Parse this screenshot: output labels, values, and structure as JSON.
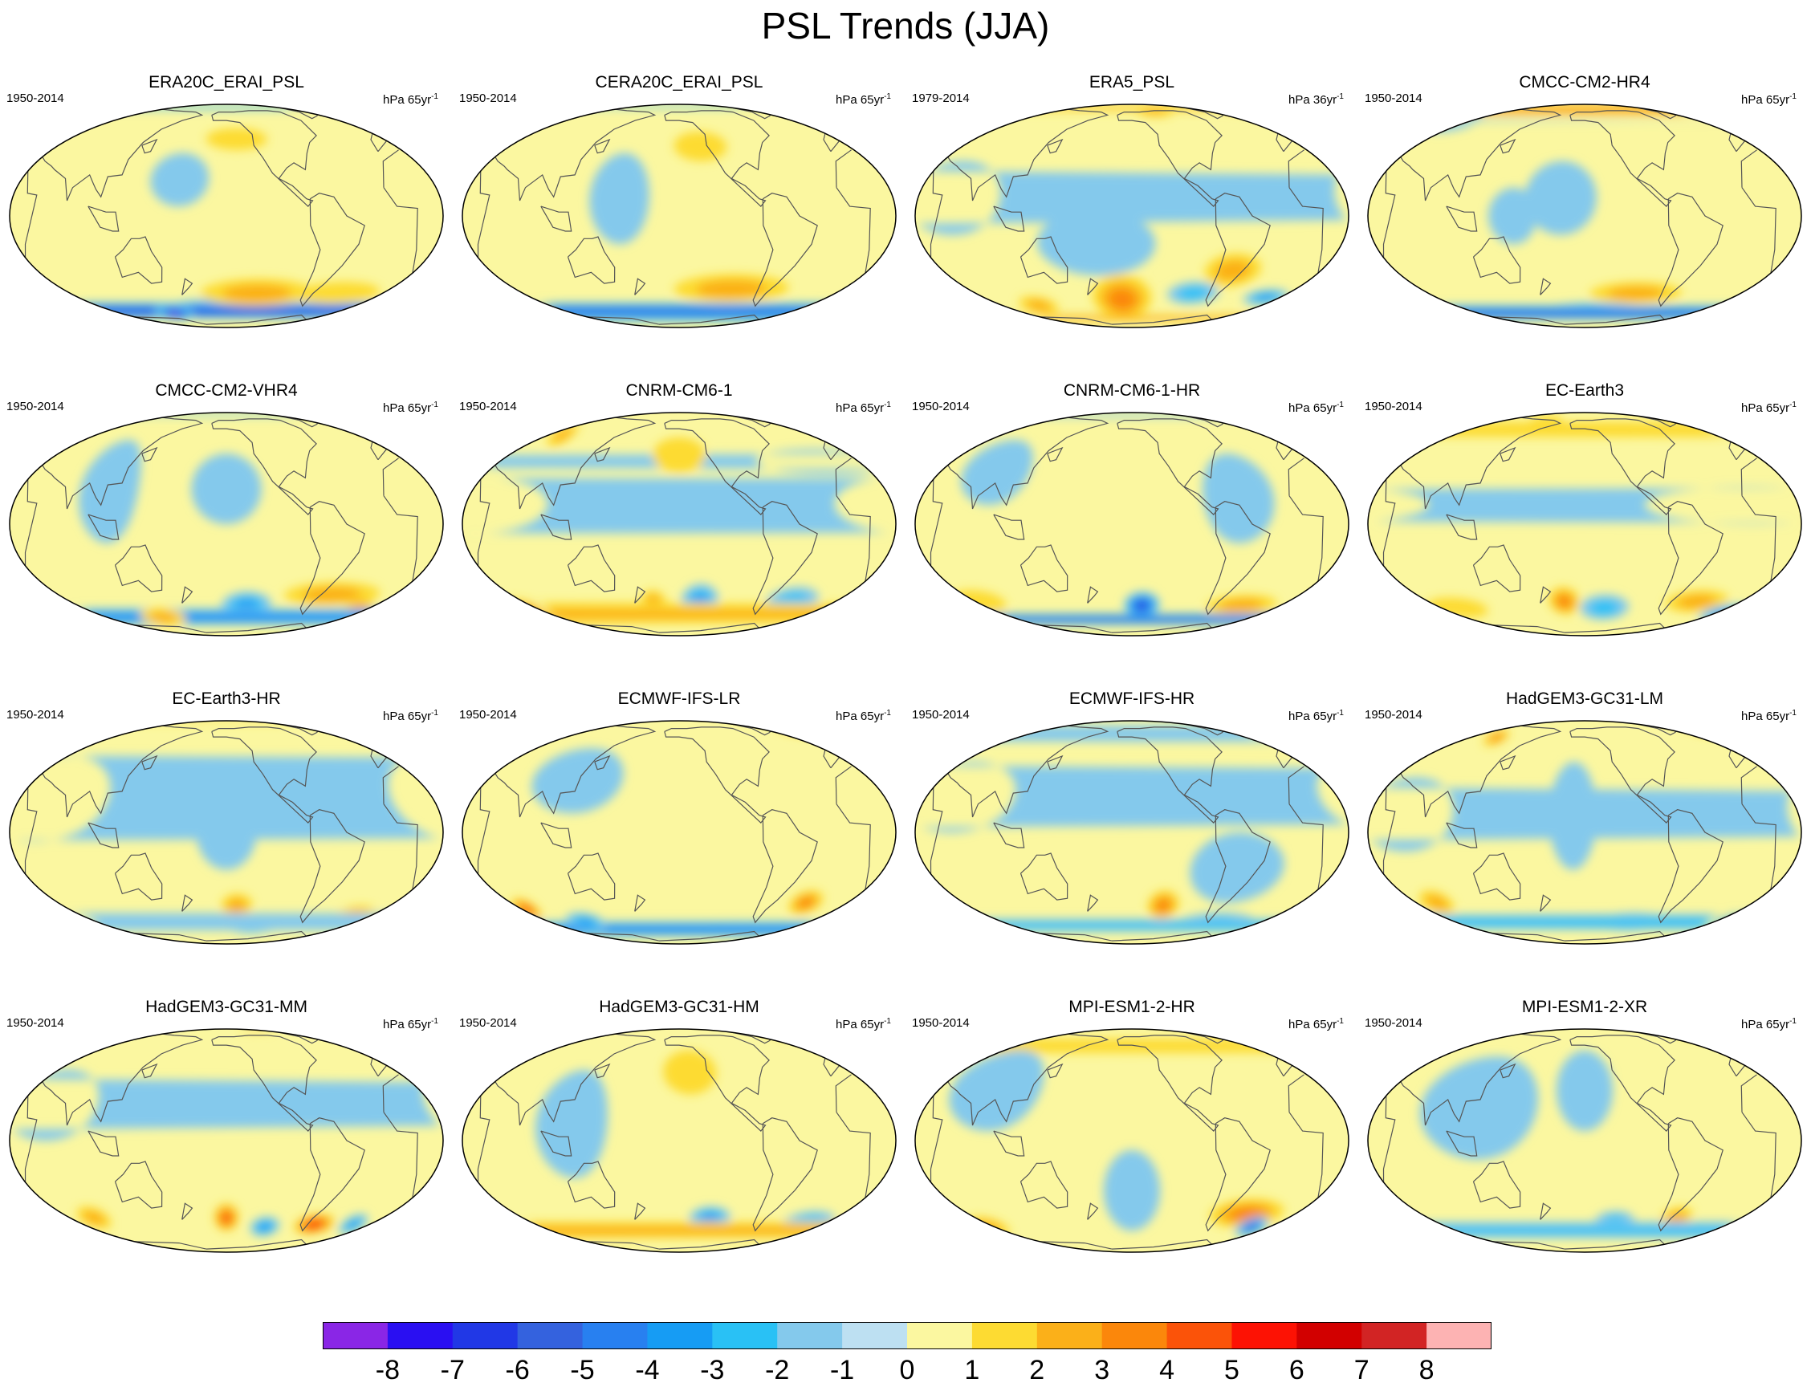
{
  "figure": {
    "title": "PSL Trends (JJA)"
  },
  "panels": [
    {
      "name": "ERA20C_ERAI_PSL",
      "period": "1950-2014",
      "units_base": "hPa 65yr",
      "units_exp": "-1",
      "blobs": [
        {
          "lon": -150,
          "lat": -58,
          "rx": 70,
          "ry": 9,
          "v": -5
        },
        {
          "lon": 30,
          "lat": -60,
          "rx": 60,
          "ry": 8,
          "v": -6
        },
        {
          "lon": 150,
          "lat": -62,
          "rx": 22,
          "ry": 8,
          "v": -8
        },
        {
          "lon": -120,
          "lat": -45,
          "rx": 55,
          "ry": 10,
          "v": 2
        },
        {
          "lon": -40,
          "lat": -45,
          "rx": 40,
          "ry": 8,
          "v": 1
        },
        {
          "lon": 0,
          "lat": 80,
          "rx": 90,
          "ry": 6,
          "v": -2
        },
        {
          "lon": -140,
          "lat": 45,
          "rx": 30,
          "ry": 8,
          "v": 1
        },
        {
          "lon": 170,
          "lat": 20,
          "rx": 25,
          "ry": 15,
          "v": -1
        }
      ]
    },
    {
      "name": "CERA20C_ERAI_PSL",
      "period": "1950-2014",
      "units_base": "hPa 65yr",
      "units_exp": "-1",
      "blobs": [
        {
          "lon": -150,
          "lat": -62,
          "rx": 60,
          "ry": 8,
          "v": -5
        },
        {
          "lon": 40,
          "lat": -60,
          "rx": 70,
          "ry": 8,
          "v": -5
        },
        {
          "lon": 20,
          "lat": -68,
          "rx": 15,
          "ry": 5,
          "v": -7
        },
        {
          "lon": -100,
          "lat": -42,
          "rx": 55,
          "ry": 10,
          "v": 2
        },
        {
          "lon": 0,
          "lat": 82,
          "rx": 90,
          "ry": 5,
          "v": -2
        },
        {
          "lon": 160,
          "lat": 10,
          "rx": 25,
          "ry": 25,
          "v": -1
        },
        {
          "lon": -130,
          "lat": 40,
          "rx": 25,
          "ry": 10,
          "v": 1
        }
      ]
    },
    {
      "name": "ERA5_PSL",
      "period": "1979-2014",
      "units_base": "hPa 36yr",
      "units_exp": "-1",
      "blobs": [
        {
          "lon": 0,
          "lat": 78,
          "rx": 45,
          "ry": 8,
          "v": 3
        },
        {
          "lon": -120,
          "lat": 72,
          "rx": 25,
          "ry": 8,
          "v": 2
        },
        {
          "lon": -90,
          "lat": -45,
          "rx": 25,
          "ry": 8,
          "v": -2
        },
        {
          "lon": -15,
          "lat": -48,
          "rx": 22,
          "ry": 6,
          "v": -3
        },
        {
          "lon": -160,
          "lat": -50,
          "rx": 30,
          "ry": 18,
          "v": 3
        },
        {
          "lon": -60,
          "lat": -30,
          "rx": 25,
          "ry": 10,
          "v": 2
        },
        {
          "lon": -180,
          "lat": -15,
          "rx": 50,
          "ry": 18,
          "v": -1
        },
        {
          "lon": 60,
          "lat": 10,
          "rx": 40,
          "ry": 20,
          "v": -1
        },
        {
          "lon": 110,
          "lat": -55,
          "rx": 20,
          "ry": 8,
          "v": 2
        },
        {
          "lon": 60,
          "lat": -68,
          "rx": 80,
          "ry": 4,
          "v": 3
        }
      ]
    },
    {
      "name": "CMCC-CM2-HR4",
      "period": "1950-2014",
      "units_base": "hPa 65yr",
      "units_exp": "-1",
      "blobs": [
        {
          "lon": 10,
          "lat": 75,
          "rx": 60,
          "ry": 10,
          "v": 3
        },
        {
          "lon": -100,
          "lat": -45,
          "rx": 45,
          "ry": 8,
          "v": 2
        },
        {
          "lon": -140,
          "lat": -60,
          "rx": 60,
          "ry": 8,
          "v": -4
        },
        {
          "lon": 40,
          "lat": -62,
          "rx": 35,
          "ry": 8,
          "v": -6
        },
        {
          "lon": 60,
          "lat": 60,
          "rx": 30,
          "ry": 10,
          "v": -1
        },
        {
          "lon": 150,
          "lat": 0,
          "rx": 20,
          "ry": 15,
          "v": -1
        },
        {
          "lon": -170,
          "lat": 10,
          "rx": 30,
          "ry": 20,
          "v": -1
        }
      ]
    },
    {
      "name": "CMCC-CM2-VHR4",
      "period": "1950-2014",
      "units_base": "hPa 65yr",
      "units_exp": "-1",
      "blobs": [
        {
          "lon": 0,
          "lat": 82,
          "rx": 60,
          "ry": 5,
          "v": -2
        },
        {
          "lon": 15,
          "lat": 62,
          "rx": 12,
          "ry": 6,
          "v": 2
        },
        {
          "lon": -130,
          "lat": -48,
          "rx": 25,
          "ry": 10,
          "v": -3
        },
        {
          "lon": -50,
          "lat": -40,
          "rx": 45,
          "ry": 8,
          "v": 2
        },
        {
          "lon": -15,
          "lat": -50,
          "rx": 15,
          "ry": 6,
          "v": 3
        },
        {
          "lon": 40,
          "lat": -58,
          "rx": 40,
          "ry": 8,
          "v": -4
        },
        {
          "lon": 140,
          "lat": -58,
          "rx": 25,
          "ry": 8,
          "v": 2
        },
        {
          "lon": 110,
          "lat": 20,
          "rx": 25,
          "ry": 30,
          "v": -1
        },
        {
          "lon": -150,
          "lat": 20,
          "rx": 30,
          "ry": 20,
          "v": -1
        }
      ]
    },
    {
      "name": "CNRM-CM6-1",
      "period": "1950-2014",
      "units_base": "hPa 65yr",
      "units_exp": "-1",
      "blobs": [
        {
          "lon": -130,
          "lat": -45,
          "rx": 18,
          "ry": 12,
          "v": -3
        },
        {
          "lon": -175,
          "lat": -45,
          "rx": 12,
          "ry": 8,
          "v": 2
        },
        {
          "lon": -40,
          "lat": -45,
          "rx": 25,
          "ry": 10,
          "v": -2
        },
        {
          "lon": 50,
          "lat": -55,
          "rx": 30,
          "ry": 12,
          "v": 3
        },
        {
          "lon": 85,
          "lat": 55,
          "rx": 12,
          "ry": 10,
          "v": 2
        },
        {
          "lon": -20,
          "lat": 35,
          "rx": 60,
          "ry": 8,
          "v": -1
        },
        {
          "lon": 40,
          "lat": 10,
          "rx": 60,
          "ry": 15,
          "v": -1
        },
        {
          "lon": -150,
          "lat": 40,
          "rx": 25,
          "ry": 12,
          "v": 1
        }
      ]
    },
    {
      "name": "CNRM-CM6-1-HR",
      "period": "1950-2014",
      "units_base": "hPa 65yr",
      "units_exp": "-1",
      "blobs": [
        {
          "lon": -140,
          "lat": -48,
          "rx": 18,
          "ry": 10,
          "v": -6
        },
        {
          "lon": -40,
          "lat": -48,
          "rx": 35,
          "ry": 8,
          "v": 2
        },
        {
          "lon": 20,
          "lat": -60,
          "rx": 25,
          "ry": 6,
          "v": -7
        },
        {
          "lon": 60,
          "lat": -45,
          "rx": 25,
          "ry": 8,
          "v": 1
        },
        {
          "lon": 40,
          "lat": 80,
          "rx": 40,
          "ry": 5,
          "v": -1
        },
        {
          "lon": -60,
          "lat": 15,
          "rx": 30,
          "ry": 25,
          "v": -1
        },
        {
          "lon": 90,
          "lat": 30,
          "rx": 30,
          "ry": 20,
          "v": -1
        }
      ]
    },
    {
      "name": "EC-Earth3",
      "period": "1950-2014",
      "units_base": "hPa 65yr",
      "units_exp": "-1",
      "blobs": [
        {
          "lon": -170,
          "lat": -45,
          "rx": 15,
          "ry": 10,
          "v": 3
        },
        {
          "lon": -130,
          "lat": -50,
          "rx": 25,
          "ry": 10,
          "v": -2
        },
        {
          "lon": -40,
          "lat": -45,
          "rx": 30,
          "ry": 8,
          "v": 2
        },
        {
          "lon": 0,
          "lat": -55,
          "rx": 25,
          "ry": 8,
          "v": -3
        },
        {
          "lon": 80,
          "lat": -50,
          "rx": 30,
          "ry": 8,
          "v": 1
        },
        {
          "lon": 20,
          "lat": 60,
          "rx": 30,
          "ry": 8,
          "v": 1
        },
        {
          "lon": 160,
          "lat": 70,
          "rx": 20,
          "ry": 8,
          "v": 1
        },
        {
          "lon": -10,
          "lat": 10,
          "rx": 90,
          "ry": 10,
          "v": -1
        }
      ]
    },
    {
      "name": "EC-Earth3-HR",
      "period": "1950-2014",
      "units_base": "hPa 65yr",
      "units_exp": "-1",
      "blobs": [
        {
          "lon": -140,
          "lat": -42,
          "rx": 15,
          "ry": 8,
          "v": 2
        },
        {
          "lon": -120,
          "lat": -58,
          "rx": 30,
          "ry": 8,
          "v": -3
        },
        {
          "lon": -20,
          "lat": -50,
          "rx": 20,
          "ry": 8,
          "v": 2
        },
        {
          "lon": 40,
          "lat": -55,
          "rx": 30,
          "ry": 8,
          "v": -1
        },
        {
          "lon": 0,
          "lat": 85,
          "rx": 60,
          "ry": 5,
          "v": 1
        },
        {
          "lon": 50,
          "lat": 20,
          "rx": 60,
          "ry": 25,
          "v": -1
        },
        {
          "lon": -150,
          "lat": 0,
          "rx": 25,
          "ry": 20,
          "v": -1
        }
      ]
    },
    {
      "name": "ECMWF-IFS-LR",
      "period": "1950-2014",
      "units_base": "hPa 65yr",
      "units_exp": "-1",
      "blobs": [
        {
          "lon": 0,
          "lat": 70,
          "rx": 20,
          "ry": 8,
          "v": 2
        },
        {
          "lon": -30,
          "lat": -40,
          "rx": 15,
          "ry": 8,
          "v": 3
        },
        {
          "lon": 60,
          "lat": -45,
          "rx": 12,
          "ry": 8,
          "v": 4
        },
        {
          "lon": -90,
          "lat": -62,
          "rx": 80,
          "ry": 8,
          "v": -5
        },
        {
          "lon": 20,
          "lat": -62,
          "rx": 50,
          "ry": 8,
          "v": -4
        },
        {
          "lon": 110,
          "lat": -55,
          "rx": 20,
          "ry": 8,
          "v": -3
        },
        {
          "lon": 120,
          "lat": 30,
          "rx": 40,
          "ry": 20,
          "v": -1
        }
      ]
    },
    {
      "name": "ECMWF-IFS-HR",
      "period": "1950-2014",
      "units_base": "hPa 65yr",
      "units_exp": "-1",
      "blobs": [
        {
          "lon": -120,
          "lat": -42,
          "rx": 15,
          "ry": 10,
          "v": 3
        },
        {
          "lon": -60,
          "lat": -55,
          "rx": 40,
          "ry": 8,
          "v": -2
        },
        {
          "lon": 30,
          "lat": -58,
          "rx": 30,
          "ry": 6,
          "v": -2
        },
        {
          "lon": 20,
          "lat": 65,
          "rx": 30,
          "ry": 10,
          "v": -1
        },
        {
          "lon": 60,
          "lat": 20,
          "rx": 50,
          "ry": 20,
          "v": -1
        },
        {
          "lon": -60,
          "lat": -20,
          "rx": 40,
          "ry": 20,
          "v": -1
        }
      ]
    },
    {
      "name": "HadGEM3-GC31-LM",
      "period": "1950-2014",
      "units_base": "hPa 65yr",
      "units_exp": "-1",
      "blobs": [
        {
          "lon": -100,
          "lat": -55,
          "rx": 40,
          "ry": 8,
          "v": -4
        },
        {
          "lon": 10,
          "lat": -55,
          "rx": 40,
          "ry": 8,
          "v": -3
        },
        {
          "lon": 70,
          "lat": -40,
          "rx": 15,
          "ry": 8,
          "v": 2
        },
        {
          "lon": 0,
          "lat": 70,
          "rx": 15,
          "ry": 8,
          "v": 2
        },
        {
          "lon": 110,
          "lat": 60,
          "rx": 12,
          "ry": 8,
          "v": 3
        },
        {
          "lon": -160,
          "lat": 10,
          "rx": 20,
          "ry": 30,
          "v": -1
        },
        {
          "lon": 60,
          "lat": 10,
          "rx": 40,
          "ry": 20,
          "v": -1
        }
      ]
    },
    {
      "name": "HadGEM3-GC31-MM",
      "period": "1950-2014",
      "units_base": "hPa 65yr",
      "units_exp": "-1",
      "blobs": [
        {
          "lon": -150,
          "lat": -45,
          "rx": 12,
          "ry": 10,
          "v": 4
        },
        {
          "lon": -110,
          "lat": -52,
          "rx": 15,
          "ry": 8,
          "v": -3
        },
        {
          "lon": -60,
          "lat": -50,
          "rx": 20,
          "ry": 8,
          "v": 5
        },
        {
          "lon": -20,
          "lat": -50,
          "rx": 12,
          "ry": 8,
          "v": -3
        },
        {
          "lon": 80,
          "lat": -45,
          "rx": 15,
          "ry": 8,
          "v": 2
        },
        {
          "lon": -100,
          "lat": 85,
          "rx": 30,
          "ry": 5,
          "v": 2
        },
        {
          "lon": 60,
          "lat": 20,
          "rx": 40,
          "ry": 20,
          "v": -1
        }
      ]
    },
    {
      "name": "HadGEM3-GC31-HM",
      "period": "1950-2014",
      "units_base": "hPa 65yr",
      "units_exp": "-1",
      "blobs": [
        {
          "lon": -120,
          "lat": -45,
          "rx": 20,
          "ry": 8,
          "v": -3
        },
        {
          "lon": -20,
          "lat": -48,
          "rx": 25,
          "ry": 8,
          "v": -2
        },
        {
          "lon": 40,
          "lat": -55,
          "rx": 25,
          "ry": 8,
          "v": 2
        },
        {
          "lon": 0,
          "lat": 75,
          "rx": 25,
          "ry": 6,
          "v": 1
        },
        {
          "lon": 120,
          "lat": 10,
          "rx": 30,
          "ry": 30,
          "v": -1
        },
        {
          "lon": -140,
          "lat": 40,
          "rx": 25,
          "ry": 15,
          "v": 1
        }
      ]
    },
    {
      "name": "MPI-ESM1-2-HR",
      "period": "1950-2014",
      "units_base": "hPa 65yr",
      "units_exp": "-1",
      "blobs": [
        {
          "lon": -40,
          "lat": -42,
          "rx": 35,
          "ry": 10,
          "v": 3
        },
        {
          "lon": -25,
          "lat": -52,
          "rx": 15,
          "ry": 8,
          "v": -5
        },
        {
          "lon": 60,
          "lat": -52,
          "rx": 20,
          "ry": 8,
          "v": 2
        },
        {
          "lon": -150,
          "lat": -30,
          "rx": 25,
          "ry": 25,
          "v": -1
        },
        {
          "lon": 40,
          "lat": 60,
          "rx": 20,
          "ry": 8,
          "v": 1
        },
        {
          "lon": 90,
          "lat": 30,
          "rx": 40,
          "ry": 25,
          "v": -1
        }
      ]
    },
    {
      "name": "MPI-ESM1-2-XR",
      "period": "1950-2014",
      "units_base": "hPa 65yr",
      "units_exp": "-1",
      "blobs": [
        {
          "lon": -120,
          "lat": -48,
          "rx": 20,
          "ry": 8,
          "v": -2
        },
        {
          "lon": -60,
          "lat": -45,
          "rx": 15,
          "ry": 8,
          "v": 2
        },
        {
          "lon": 20,
          "lat": -55,
          "rx": 25,
          "ry": 8,
          "v": -2
        },
        {
          "lon": 0,
          "lat": 75,
          "rx": 20,
          "ry": 6,
          "v": 1
        },
        {
          "lon": 120,
          "lat": 20,
          "rx": 50,
          "ry": 30,
          "v": -1
        },
        {
          "lon": -150,
          "lat": 30,
          "rx": 25,
          "ry": 25,
          "v": -1
        }
      ]
    }
  ],
  "colorbar": {
    "colors": [
      "#8a26e6",
      "#2a0ff2",
      "#2138e6",
      "#3462de",
      "#2880f0",
      "#169cf4",
      "#29c1f5",
      "#84c9ec",
      "#bde0f2",
      "#fbf7a0",
      "#fddb32",
      "#fbb019",
      "#fb870b",
      "#fb5309",
      "#fd1204",
      "#d20000",
      "#d22424",
      "#fdb3b3"
    ],
    "tick_values": [
      "-8",
      "-7",
      "-6",
      "-5",
      "-4",
      "-3",
      "-2",
      "-1",
      "0",
      "1",
      "2",
      "3",
      "4",
      "5",
      "6",
      "7",
      "8"
    ]
  }
}
